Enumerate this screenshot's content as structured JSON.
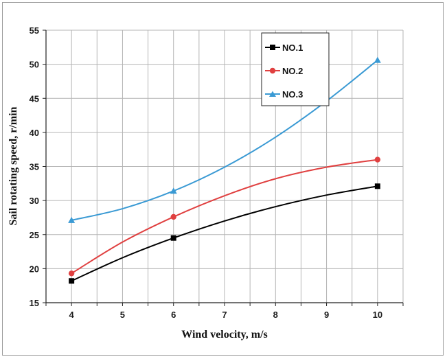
{
  "chart_data": {
    "type": "line",
    "title": "",
    "xlabel": "Wind velocity,  m/s",
    "ylabel": "Sail rotating speed,  r/min",
    "x": [
      4,
      5,
      6,
      7,
      8,
      9,
      10
    ],
    "xlim": [
      3.5,
      10.5
    ],
    "xticks": [
      "4",
      "5",
      "6",
      "7",
      "8",
      "9",
      "10"
    ],
    "ylim": [
      15,
      55
    ],
    "yticks": [
      "15",
      "20",
      "25",
      "30",
      "35",
      "40",
      "45",
      "50",
      "55"
    ],
    "grid": true,
    "legend_position": "top-right",
    "series": [
      {
        "name": "NO.1",
        "color": "#000000",
        "marker": "square",
        "values": [
          18.2,
          21.6,
          24.5,
          27.0,
          29.1,
          30.8,
          32.1
        ],
        "marked_x": [
          4,
          6,
          10
        ]
      },
      {
        "name": "NO.2",
        "color": "#e04040",
        "marker": "circle",
        "values": [
          19.3,
          23.9,
          27.6,
          30.7,
          33.2,
          34.9,
          36.0
        ],
        "marked_x": [
          4,
          6,
          10
        ]
      },
      {
        "name": "NO.3",
        "color": "#3a9ad4",
        "marker": "triangle",
        "values": [
          27.1,
          28.8,
          31.4,
          34.9,
          39.3,
          44.6,
          50.6
        ],
        "marked_x": [
          4,
          6,
          10
        ]
      }
    ]
  }
}
